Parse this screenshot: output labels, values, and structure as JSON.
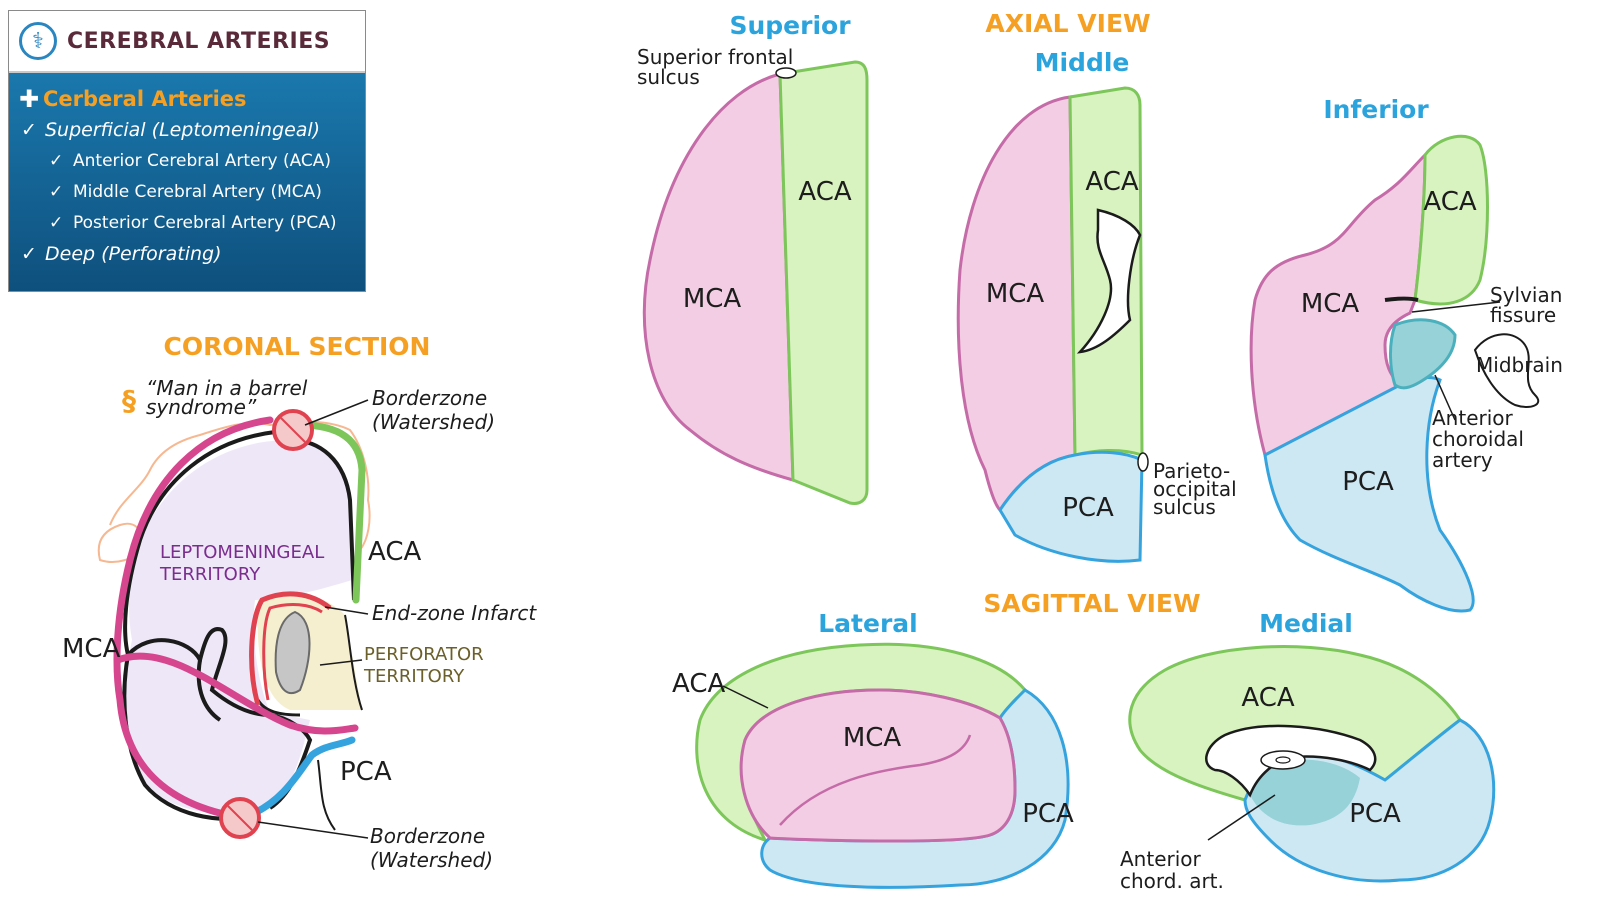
{
  "header": {
    "title": "CEREBRAL ARTERIES",
    "icon": "caduceus-icon"
  },
  "outline": [
    {
      "level": 0,
      "mark": "✚",
      "label": "Cerberal Arteries"
    },
    {
      "level": 1,
      "mark": "✓",
      "label": "Superficial (Leptomeningeal)"
    },
    {
      "level": 2,
      "mark": "✓",
      "label": "Anterior Cerebral Artery (ACA)"
    },
    {
      "level": 2,
      "mark": "✓",
      "label": "Middle Cerebral Artery (MCA)"
    },
    {
      "level": 2,
      "mark": "✓",
      "label": "Posterior Cerebral Artery (PCA)"
    },
    {
      "level": 1,
      "mark": "✓",
      "label": "Deep (Perforating)"
    }
  ],
  "coronal": {
    "title": "CORONAL SECTION",
    "clinical_note_line1": "“Man in a barrel",
    "clinical_note_line2": "syndrome”",
    "borderzone_top_line1": "Borderzone",
    "borderzone_top_line2": "(Watershed)",
    "aca": "ACA",
    "mca": "MCA",
    "pca": "PCA",
    "lepto_line1": "LEPTOMENINGEAL",
    "lepto_line2": "TERRITORY",
    "end_zone": "End-zone Infarct",
    "perforator_line1": "PERFORATOR",
    "perforator_line2": "TERRITORY",
    "borderzone_bottom_line1": "Borderzone",
    "borderzone_bottom_line2": "(Watershed)"
  },
  "axial": {
    "title": "AXIAL VIEW",
    "superior": {
      "title": "Superior",
      "sulcus_line1": "Superior frontal",
      "sulcus_line2": "sulcus",
      "aca": "ACA",
      "mca": "MCA"
    },
    "middle": {
      "title": "Middle",
      "aca": "ACA",
      "mca": "MCA",
      "pca": "PCA",
      "po_line1": "Parieto-",
      "po_line2": "occipital",
      "po_line3": "sulcus"
    },
    "inferior": {
      "title": "Inferior",
      "aca": "ACA",
      "mca": "MCA",
      "pca": "PCA",
      "sylvian_line1": "Sylvian",
      "sylvian_line2": "fissure",
      "midbrain": "Midbrain",
      "ach_line1": "Anterior",
      "ach_line2": "choroidal",
      "ach_line3": "artery"
    }
  },
  "sagittal": {
    "title": "SAGITTAL VIEW",
    "lateral": {
      "title": "Lateral",
      "aca": "ACA",
      "mca": "MCA",
      "pca": "PCA"
    },
    "medial": {
      "title": "Medial",
      "aca": "ACA",
      "pca": "PCA",
      "ach_line1": "Anterior",
      "ach_line2": "chord. art."
    }
  },
  "colors": {
    "aca_fill": "#d8f2c0",
    "aca_stroke": "#7cc65a",
    "mca_fill": "#f3cde3",
    "mca_stroke": "#c46ba8",
    "pca_fill": "#cde8f3",
    "pca_stroke": "#35a3de",
    "ach_fill": "#96d2d8",
    "orange": "#f5a023",
    "blue": "#2ba3dd",
    "infarct": "#e0424f",
    "perforator_fill": "#f5efd0",
    "lepto_fill": "#eee7f8",
    "lepto_text": "#7b2d8e"
  }
}
